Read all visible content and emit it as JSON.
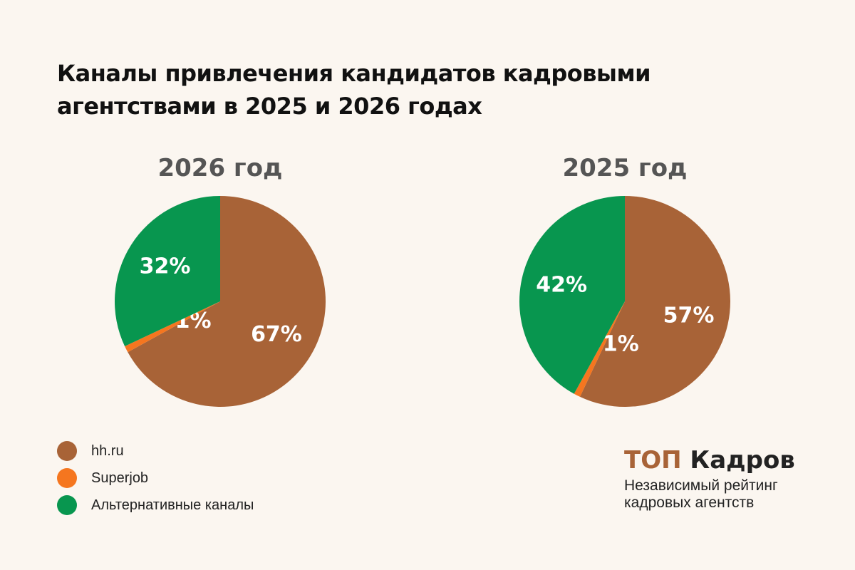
{
  "title": "Каналы привлечения кандидатов кадровыми агентствами в 2025 и 2026 годах",
  "chart_data": [
    {
      "type": "pie",
      "title": "2026 год",
      "categories": [
        "hh.ru",
        "Superjob",
        "Альтернативные каналы"
      ],
      "values": [
        67,
        1,
        32
      ],
      "labels": [
        "67%",
        "1%",
        "32%"
      ],
      "colors": [
        "#a86337",
        "#f5761f",
        "#08964f"
      ]
    },
    {
      "type": "pie",
      "title": "2025 год",
      "categories": [
        "hh.ru",
        "Superjob",
        "Альтернативные каналы"
      ],
      "values": [
        57,
        1,
        42
      ],
      "labels": [
        "57%",
        "1%",
        "42%"
      ],
      "colors": [
        "#a86337",
        "#f5761f",
        "#08964f"
      ]
    }
  ],
  "legend": {
    "placement": "bottom-left",
    "items": [
      {
        "label": "hh.ru",
        "color": "#a86337"
      },
      {
        "label": "Superjob",
        "color": "#f5761f"
      },
      {
        "label": "Альтернативные каналы",
        "color": "#08964f"
      }
    ]
  },
  "brand": {
    "name_accent": "ТОП",
    "name_rest": "Кадров",
    "subtitle": "Независимый рейтинг кадровых агентств"
  }
}
